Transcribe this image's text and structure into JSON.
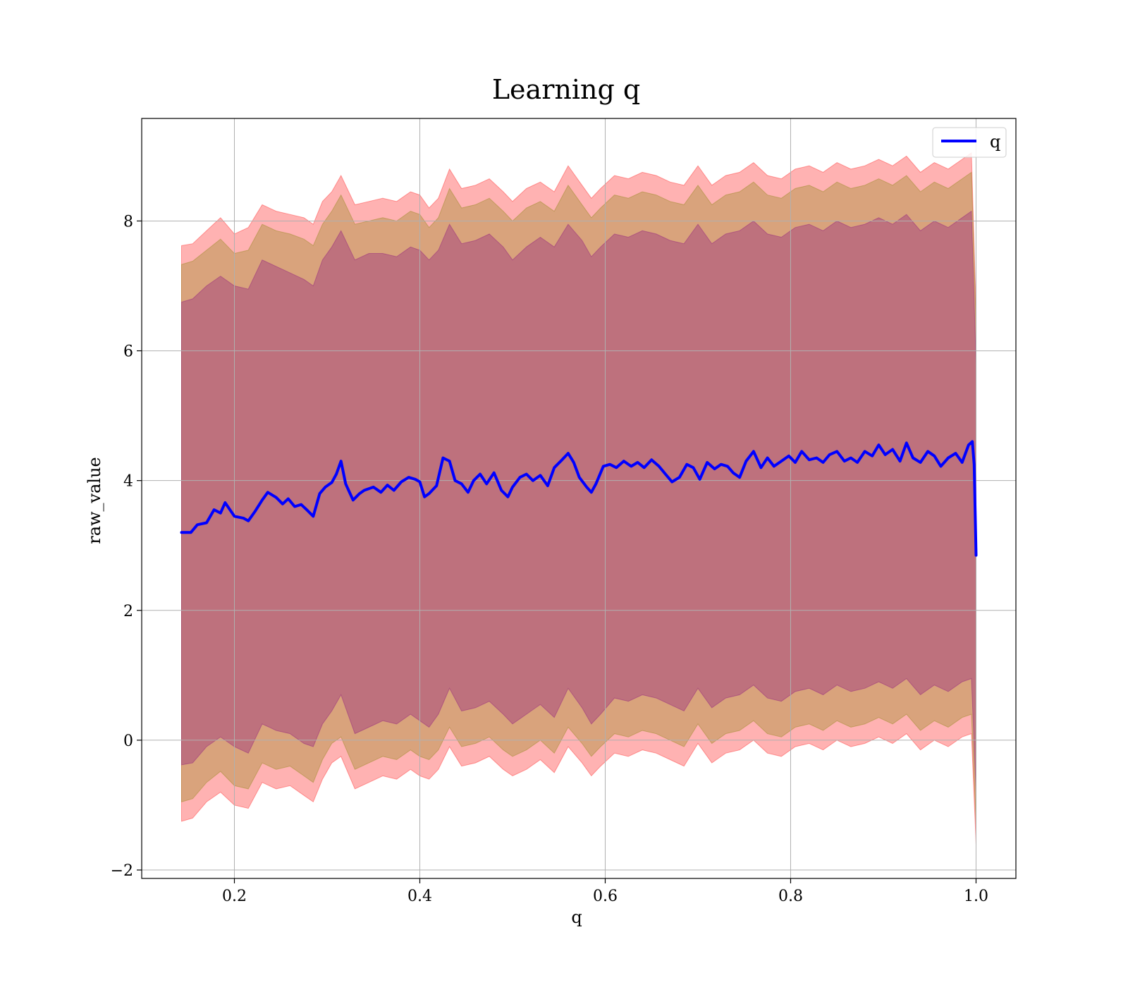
{
  "chart_data": {
    "type": "line",
    "title": "Learning q",
    "xlabel": "q",
    "ylabel": "raw_value",
    "xlim": [
      0.1,
      1.043
    ],
    "ylim": [
      -2.13,
      9.58
    ],
    "xticks": [
      {
        "value": 0.2,
        "label": "0.2"
      },
      {
        "value": 0.4,
        "label": "0.4"
      },
      {
        "value": 0.6,
        "label": "0.6"
      },
      {
        "value": 0.8,
        "label": "0.8"
      },
      {
        "value": 1.0,
        "label": "1.0"
      }
    ],
    "yticks": [
      {
        "value": -2,
        "label": "−2"
      },
      {
        "value": 0,
        "label": "0"
      },
      {
        "value": 2,
        "label": "2"
      },
      {
        "value": 4,
        "label": "4"
      },
      {
        "value": 6,
        "label": "6"
      },
      {
        "value": 8,
        "label": "8"
      }
    ],
    "grid": true,
    "legend": {
      "placement": "top-right",
      "entries": [
        {
          "label": "q",
          "color": "#0000ff"
        }
      ]
    },
    "series": [
      {
        "name": "q",
        "color": "#0000ff",
        "x": [
          0.143,
          0.153,
          0.16,
          0.17,
          0.178,
          0.185,
          0.19,
          0.2,
          0.21,
          0.215,
          0.222,
          0.23,
          0.236,
          0.245,
          0.252,
          0.258,
          0.265,
          0.272,
          0.278,
          0.285,
          0.292,
          0.298,
          0.305,
          0.31,
          0.315,
          0.32,
          0.328,
          0.335,
          0.34,
          0.35,
          0.358,
          0.365,
          0.372,
          0.38,
          0.388,
          0.395,
          0.4,
          0.405,
          0.41,
          0.418,
          0.425,
          0.432,
          0.438,
          0.445,
          0.452,
          0.458,
          0.465,
          0.472,
          0.48,
          0.488,
          0.495,
          0.5,
          0.508,
          0.515,
          0.522,
          0.53,
          0.538,
          0.545,
          0.552,
          0.56,
          0.566,
          0.572,
          0.58,
          0.585,
          0.59,
          0.598,
          0.605,
          0.612,
          0.62,
          0.628,
          0.635,
          0.642,
          0.65,
          0.658,
          0.665,
          0.672,
          0.68,
          0.688,
          0.695,
          0.702,
          0.71,
          0.718,
          0.725,
          0.732,
          0.738,
          0.745,
          0.752,
          0.76,
          0.768,
          0.775,
          0.782,
          0.79,
          0.798,
          0.805,
          0.812,
          0.82,
          0.828,
          0.835,
          0.842,
          0.85,
          0.858,
          0.865,
          0.872,
          0.88,
          0.888,
          0.895,
          0.902,
          0.91,
          0.918,
          0.925,
          0.932,
          0.94,
          0.948,
          0.955,
          0.962,
          0.97,
          0.978,
          0.985,
          0.992,
          0.996,
          0.998,
          1.0
        ],
        "values": [
          3.2,
          3.2,
          3.32,
          3.35,
          3.55,
          3.5,
          3.66,
          3.45,
          3.42,
          3.38,
          3.52,
          3.7,
          3.82,
          3.74,
          3.64,
          3.72,
          3.6,
          3.63,
          3.55,
          3.45,
          3.8,
          3.9,
          3.97,
          4.1,
          4.3,
          3.95,
          3.7,
          3.8,
          3.85,
          3.9,
          3.82,
          3.93,
          3.85,
          3.98,
          4.05,
          4.02,
          3.98,
          3.75,
          3.8,
          3.92,
          4.35,
          4.3,
          4.0,
          3.95,
          3.82,
          4.0,
          4.1,
          3.95,
          4.12,
          3.85,
          3.75,
          3.9,
          4.05,
          4.1,
          4.0,
          4.08,
          3.92,
          4.2,
          4.3,
          4.42,
          4.28,
          4.05,
          3.9,
          3.82,
          3.95,
          4.22,
          4.25,
          4.2,
          4.3,
          4.22,
          4.28,
          4.2,
          4.32,
          4.22,
          4.1,
          3.98,
          4.05,
          4.25,
          4.2,
          4.02,
          4.28,
          4.18,
          4.25,
          4.22,
          4.12,
          4.05,
          4.3,
          4.45,
          4.2,
          4.35,
          4.22,
          4.3,
          4.38,
          4.28,
          4.45,
          4.32,
          4.35,
          4.28,
          4.4,
          4.45,
          4.3,
          4.35,
          4.28,
          4.45,
          4.38,
          4.55,
          4.4,
          4.48,
          4.3,
          4.58,
          4.35,
          4.28,
          4.45,
          4.38,
          4.22,
          4.35,
          4.42,
          4.28,
          4.55,
          4.6,
          4.25,
          2.85
        ]
      }
    ],
    "bands": [
      {
        "color": "#ff0000",
        "opacity": 0.3,
        "x": [
          0.143,
          0.155,
          0.17,
          0.185,
          0.2,
          0.215,
          0.23,
          0.245,
          0.26,
          0.275,
          0.285,
          0.295,
          0.305,
          0.315,
          0.33,
          0.345,
          0.36,
          0.375,
          0.39,
          0.4,
          0.41,
          0.42,
          0.432,
          0.445,
          0.46,
          0.475,
          0.49,
          0.5,
          0.515,
          0.53,
          0.545,
          0.56,
          0.575,
          0.585,
          0.595,
          0.61,
          0.625,
          0.64,
          0.655,
          0.67,
          0.685,
          0.7,
          0.715,
          0.73,
          0.745,
          0.76,
          0.775,
          0.79,
          0.805,
          0.82,
          0.835,
          0.85,
          0.865,
          0.88,
          0.895,
          0.91,
          0.925,
          0.94,
          0.955,
          0.97,
          0.985,
          0.995,
          1.0
        ],
        "upper": [
          7.62,
          7.65,
          7.85,
          8.05,
          7.8,
          7.9,
          8.25,
          8.15,
          8.1,
          8.05,
          7.95,
          8.3,
          8.45,
          8.7,
          8.25,
          8.3,
          8.35,
          8.3,
          8.45,
          8.4,
          8.2,
          8.35,
          8.8,
          8.5,
          8.55,
          8.65,
          8.45,
          8.3,
          8.5,
          8.6,
          8.45,
          8.85,
          8.55,
          8.35,
          8.5,
          8.7,
          8.65,
          8.75,
          8.7,
          8.6,
          8.55,
          8.85,
          8.55,
          8.7,
          8.75,
          8.9,
          8.7,
          8.65,
          8.8,
          8.85,
          8.75,
          8.9,
          8.8,
          8.85,
          8.95,
          8.85,
          9.0,
          8.75,
          8.9,
          8.8,
          8.95,
          9.05,
          6.6
        ],
        "lower": [
          -1.25,
          -1.2,
          -0.95,
          -0.8,
          -1.0,
          -1.05,
          -0.65,
          -0.75,
          -0.7,
          -0.85,
          -0.95,
          -0.6,
          -0.35,
          -0.25,
          -0.75,
          -0.65,
          -0.55,
          -0.6,
          -0.45,
          -0.55,
          -0.6,
          -0.45,
          -0.1,
          -0.4,
          -0.35,
          -0.25,
          -0.45,
          -0.55,
          -0.45,
          -0.3,
          -0.5,
          -0.1,
          -0.35,
          -0.55,
          -0.4,
          -0.2,
          -0.25,
          -0.15,
          -0.2,
          -0.3,
          -0.4,
          -0.05,
          -0.35,
          -0.2,
          -0.15,
          0.0,
          -0.2,
          -0.25,
          -0.1,
          -0.05,
          -0.15,
          0.0,
          -0.1,
          -0.05,
          0.05,
          -0.05,
          0.1,
          -0.15,
          0.0,
          -0.1,
          0.05,
          0.1,
          -1.6
        ]
      },
      {
        "color": "#808000",
        "opacity": 0.3,
        "x": [
          0.143,
          0.155,
          0.17,
          0.185,
          0.2,
          0.215,
          0.23,
          0.245,
          0.26,
          0.275,
          0.285,
          0.295,
          0.305,
          0.315,
          0.33,
          0.345,
          0.36,
          0.375,
          0.39,
          0.4,
          0.41,
          0.42,
          0.432,
          0.445,
          0.46,
          0.475,
          0.49,
          0.5,
          0.515,
          0.53,
          0.545,
          0.56,
          0.575,
          0.585,
          0.595,
          0.61,
          0.625,
          0.64,
          0.655,
          0.67,
          0.685,
          0.7,
          0.715,
          0.73,
          0.745,
          0.76,
          0.775,
          0.79,
          0.805,
          0.82,
          0.835,
          0.85,
          0.865,
          0.88,
          0.895,
          0.91,
          0.925,
          0.94,
          0.955,
          0.97,
          0.985,
          0.995,
          1.0
        ],
        "upper": [
          7.33,
          7.38,
          7.55,
          7.72,
          7.5,
          7.55,
          7.95,
          7.85,
          7.8,
          7.72,
          7.62,
          7.95,
          8.15,
          8.4,
          7.95,
          8.0,
          8.05,
          8.0,
          8.15,
          8.1,
          7.9,
          8.05,
          8.5,
          8.2,
          8.25,
          8.35,
          8.15,
          8.0,
          8.2,
          8.3,
          8.15,
          8.55,
          8.25,
          8.05,
          8.2,
          8.4,
          8.35,
          8.45,
          8.4,
          8.3,
          8.25,
          8.55,
          8.25,
          8.4,
          8.45,
          8.6,
          8.4,
          8.35,
          8.5,
          8.55,
          8.45,
          8.6,
          8.5,
          8.55,
          8.65,
          8.55,
          8.7,
          8.45,
          8.6,
          8.5,
          8.65,
          8.75,
          6.4
        ],
        "lower": [
          -0.95,
          -0.9,
          -0.65,
          -0.48,
          -0.7,
          -0.75,
          -0.35,
          -0.45,
          -0.4,
          -0.55,
          -0.65,
          -0.3,
          -0.05,
          0.05,
          -0.45,
          -0.35,
          -0.25,
          -0.3,
          -0.15,
          -0.25,
          -0.3,
          -0.15,
          0.2,
          -0.1,
          -0.05,
          0.05,
          -0.15,
          -0.25,
          -0.15,
          0.0,
          -0.2,
          0.2,
          -0.05,
          -0.25,
          -0.1,
          0.1,
          0.05,
          0.15,
          0.1,
          0.0,
          -0.1,
          0.25,
          -0.05,
          0.1,
          0.15,
          0.3,
          0.1,
          0.05,
          0.2,
          0.25,
          0.15,
          0.3,
          0.2,
          0.25,
          0.35,
          0.25,
          0.4,
          0.15,
          0.3,
          0.2,
          0.35,
          0.4,
          -1.3
        ]
      },
      {
        "color": "#800080",
        "opacity": 0.3,
        "x": [
          0.143,
          0.155,
          0.17,
          0.185,
          0.2,
          0.215,
          0.23,
          0.245,
          0.26,
          0.275,
          0.285,
          0.295,
          0.305,
          0.315,
          0.33,
          0.345,
          0.36,
          0.375,
          0.39,
          0.4,
          0.41,
          0.42,
          0.432,
          0.445,
          0.46,
          0.475,
          0.49,
          0.5,
          0.515,
          0.53,
          0.545,
          0.56,
          0.575,
          0.585,
          0.595,
          0.61,
          0.625,
          0.64,
          0.655,
          0.67,
          0.685,
          0.7,
          0.715,
          0.73,
          0.745,
          0.76,
          0.775,
          0.79,
          0.805,
          0.82,
          0.835,
          0.85,
          0.865,
          0.88,
          0.895,
          0.91,
          0.925,
          0.94,
          0.955,
          0.97,
          0.985,
          0.995,
          1.0
        ],
        "upper": [
          6.75,
          6.8,
          7.0,
          7.15,
          7.0,
          6.95,
          7.4,
          7.3,
          7.2,
          7.1,
          7.0,
          7.4,
          7.6,
          7.85,
          7.4,
          7.5,
          7.5,
          7.45,
          7.6,
          7.55,
          7.4,
          7.55,
          7.95,
          7.65,
          7.7,
          7.8,
          7.6,
          7.4,
          7.6,
          7.75,
          7.6,
          7.95,
          7.7,
          7.45,
          7.6,
          7.8,
          7.75,
          7.85,
          7.8,
          7.7,
          7.65,
          7.95,
          7.65,
          7.8,
          7.85,
          8.0,
          7.8,
          7.75,
          7.9,
          7.95,
          7.85,
          8.0,
          7.9,
          7.95,
          8.05,
          7.95,
          8.1,
          7.85,
          8.0,
          7.9,
          8.05,
          8.15,
          5.8
        ],
        "lower": [
          -0.38,
          -0.35,
          -0.1,
          0.05,
          -0.1,
          -0.2,
          0.25,
          0.15,
          0.1,
          -0.05,
          -0.1,
          0.25,
          0.45,
          0.7,
          0.1,
          0.2,
          0.3,
          0.25,
          0.4,
          0.3,
          0.2,
          0.4,
          0.8,
          0.45,
          0.5,
          0.6,
          0.4,
          0.25,
          0.4,
          0.55,
          0.35,
          0.8,
          0.5,
          0.25,
          0.4,
          0.65,
          0.6,
          0.7,
          0.65,
          0.55,
          0.45,
          0.8,
          0.5,
          0.65,
          0.7,
          0.85,
          0.65,
          0.6,
          0.75,
          0.8,
          0.7,
          0.85,
          0.75,
          0.8,
          0.9,
          0.8,
          0.95,
          0.7,
          0.85,
          0.75,
          0.9,
          0.95,
          -0.8
        ]
      }
    ]
  }
}
